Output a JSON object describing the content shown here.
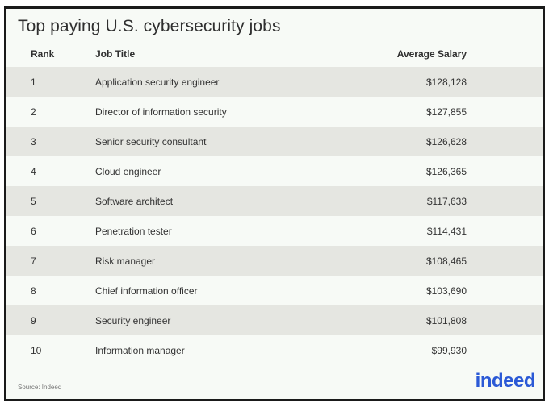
{
  "chart_data": {
    "type": "table",
    "title": "Top paying U.S. cybersecurity jobs",
    "columns": [
      "Rank",
      "Job Title",
      "Average Salary"
    ],
    "rows": [
      {
        "rank": "1",
        "title": "Application security engineer",
        "salary": "$128,128"
      },
      {
        "rank": "2",
        "title": "Director of information security",
        "salary": "$127,855"
      },
      {
        "rank": "3",
        "title": "Senior security consultant",
        "salary": "$126,628"
      },
      {
        "rank": "4",
        "title": "Cloud engineer",
        "salary": "$126,365"
      },
      {
        "rank": "5",
        "title": "Software architect",
        "salary": "$117,633"
      },
      {
        "rank": "6",
        "title": "Penetration tester",
        "salary": "$114,431"
      },
      {
        "rank": "7",
        "title": "Risk manager",
        "salary": "$108,465"
      },
      {
        "rank": "8",
        "title": "Chief information officer",
        "salary": "$103,690"
      },
      {
        "rank": "9",
        "title": "Security engineer",
        "salary": "$101,808"
      },
      {
        "rank": "10",
        "title": "Information manager",
        "salary": "$99,930"
      }
    ],
    "source": "Source: Indeed",
    "logo_text": "indeed"
  },
  "colors": {
    "shaded_row": "#e5e6e1",
    "background": "#f7faf6",
    "logo": "#2b59d6"
  }
}
